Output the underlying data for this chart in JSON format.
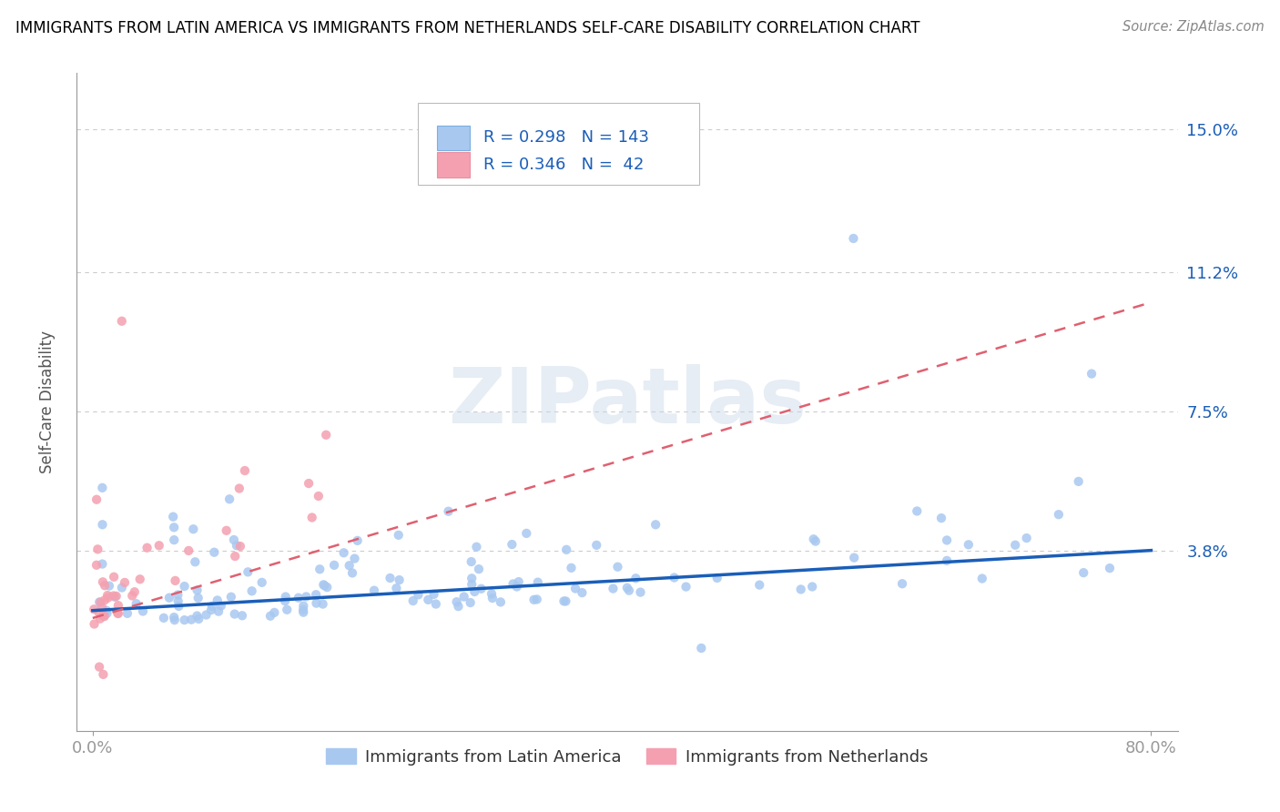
{
  "title": "IMMIGRANTS FROM LATIN AMERICA VS IMMIGRANTS FROM NETHERLANDS SELF-CARE DISABILITY CORRELATION CHART",
  "source": "Source: ZipAtlas.com",
  "ylabel": "Self-Care Disability",
  "y_ticks": [
    0.0,
    0.038,
    0.075,
    0.112,
    0.15
  ],
  "y_tick_labels": [
    "",
    "3.8%",
    "7.5%",
    "11.2%",
    "15.0%"
  ],
  "x_tick_labels": [
    "0.0%",
    "80.0%"
  ],
  "series1_color": "#a8c8f0",
  "series2_color": "#f4a0b0",
  "line1_color": "#1a5eb8",
  "line2_color": "#e06070",
  "R1": 0.298,
  "N1": 143,
  "R2": 0.346,
  "N2": 42,
  "legend1_label": "Immigrants from Latin America",
  "legend2_label": "Immigrants from Netherlands",
  "background_color": "#ffffff",
  "grid_color": "#cccccc",
  "title_color": "#000000",
  "axis_label_color": "#1a5eb8"
}
